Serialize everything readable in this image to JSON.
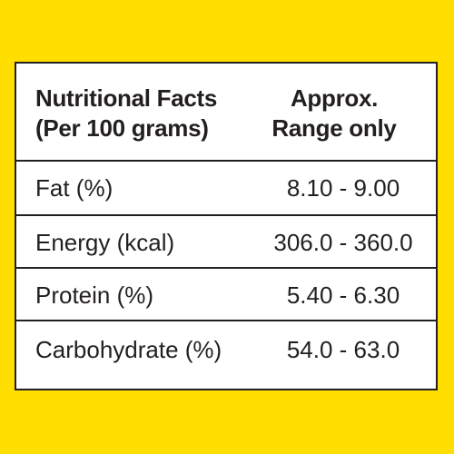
{
  "table": {
    "header": {
      "left_line1": "Nutritional Facts",
      "left_line2": "(Per 100 grams)",
      "right_line1": "Approx.",
      "right_line2": "Range only"
    },
    "rows": [
      {
        "label": "Fat (%)",
        "value": "8.10 - 9.00"
      },
      {
        "label": "Energy (kcal)",
        "value": "306.0 - 360.0"
      },
      {
        "label": "Protein (%)",
        "value": "5.40 - 6.30"
      },
      {
        "label": "Carbohydrate (%)",
        "value": "54.0 - 63.0"
      }
    ]
  },
  "colors": {
    "background": "#FFDE00",
    "card": "#FFFFFF",
    "text": "#231F20"
  }
}
